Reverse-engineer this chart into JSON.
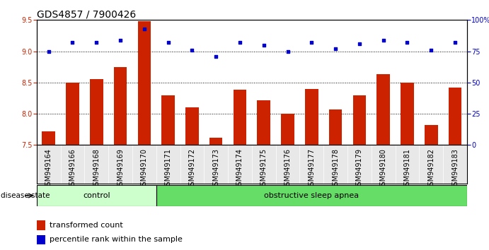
{
  "title": "GDS4857 / 7900426",
  "samples": [
    "GSM949164",
    "GSM949166",
    "GSM949168",
    "GSM949169",
    "GSM949170",
    "GSM949171",
    "GSM949172",
    "GSM949173",
    "GSM949174",
    "GSM949175",
    "GSM949176",
    "GSM949177",
    "GSM949178",
    "GSM949179",
    "GSM949180",
    "GSM949181",
    "GSM949182",
    "GSM949183"
  ],
  "bar_values": [
    7.72,
    8.5,
    8.55,
    8.75,
    9.48,
    8.3,
    8.1,
    7.62,
    8.38,
    8.22,
    8.0,
    8.4,
    8.07,
    8.3,
    8.63,
    8.5,
    7.82,
    8.42
  ],
  "percentile_values": [
    75,
    82,
    82,
    84,
    93,
    82,
    76,
    71,
    82,
    80,
    75,
    82,
    77,
    81,
    84,
    82,
    76,
    82
  ],
  "bar_color": "#cc2200",
  "dot_color": "#0000cc",
  "ylim_left": [
    7.5,
    9.5
  ],
  "ylim_right": [
    0,
    100
  ],
  "yticks_left": [
    7.5,
    8.0,
    8.5,
    9.0,
    9.5
  ],
  "yticks_right": [
    0,
    25,
    50,
    75,
    100
  ],
  "grid_values": [
    8.0,
    8.5,
    9.0
  ],
  "n_control": 5,
  "disease_state_label": "disease state",
  "group1_label": "control",
  "group2_label": "obstructive sleep apnea",
  "legend_bar_label": "transformed count",
  "legend_dot_label": "percentile rank within the sample",
  "control_color": "#ccffcc",
  "osa_color": "#66dd66",
  "bar_bottom": 7.5,
  "title_fontsize": 10,
  "tick_fontsize": 7,
  "bar_width": 0.55
}
